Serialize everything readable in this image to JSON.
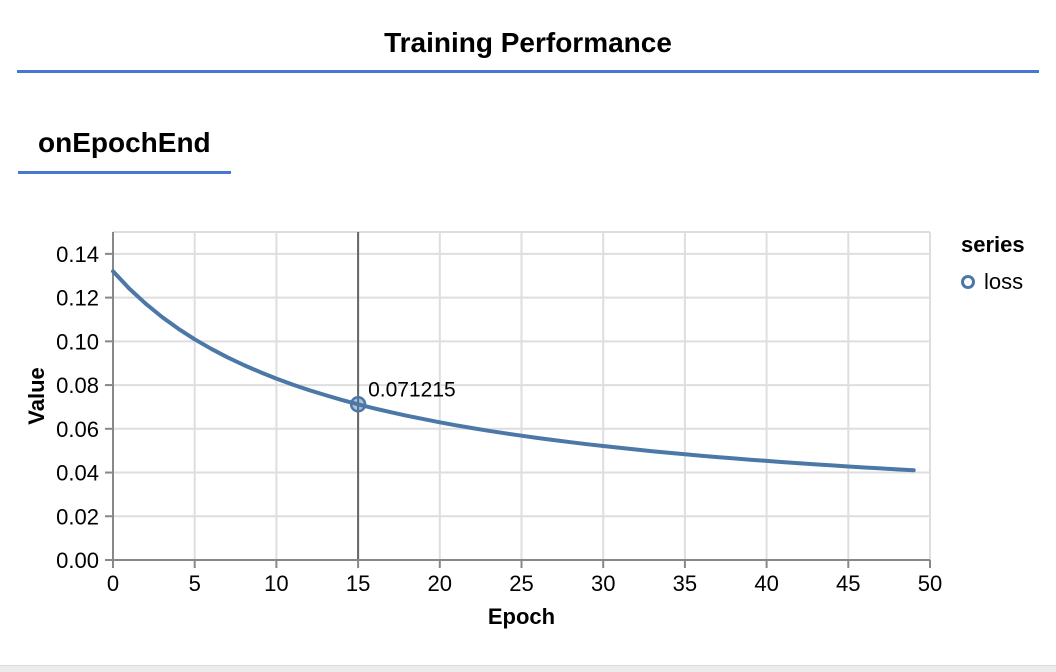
{
  "header": {
    "title": "Training Performance"
  },
  "section": {
    "label": "onEpochEnd"
  },
  "legend": {
    "title": "series",
    "items": [
      {
        "label": "loss",
        "marker": "circle-outline-icon",
        "color": "#4c78a8"
      }
    ]
  },
  "colors": {
    "accent_rule": "#4678d2",
    "series": "#4c78a8",
    "marker_fill": "rgba(76,120,168,0.45)",
    "grid": "#dedede",
    "axis": "#888888",
    "hover_rule": "#666666",
    "text": "#000000",
    "footer_strip": "#ececec"
  },
  "chart_data": {
    "type": "line",
    "title": "Training Performance",
    "xlabel": "Epoch",
    "ylabel": "Value",
    "xlim": [
      0,
      50
    ],
    "ylim": [
      0,
      0.15
    ],
    "x_ticks": [
      0,
      5,
      10,
      15,
      20,
      25,
      30,
      35,
      40,
      45,
      50
    ],
    "y_ticks": [
      0,
      0.02,
      0.04,
      0.06,
      0.08,
      0.1,
      0.12,
      0.14
    ],
    "y_tick_labels": [
      "0.00",
      "0.02",
      "0.04",
      "0.06",
      "0.08",
      "0.10",
      "0.12",
      "0.14"
    ],
    "grid": true,
    "legend_position": "right",
    "series": [
      {
        "name": "loss",
        "x": [
          0,
          1,
          2,
          3,
          4,
          5,
          6,
          7,
          8,
          9,
          10,
          11,
          12,
          13,
          14,
          15,
          16,
          17,
          18,
          19,
          20,
          21,
          22,
          23,
          24,
          25,
          26,
          27,
          28,
          29,
          30,
          31,
          32,
          33,
          34,
          35,
          36,
          37,
          38,
          39,
          40,
          41,
          42,
          43,
          44,
          45,
          46,
          47,
          48,
          49
        ],
        "values": [
          0.132009,
          0.124112,
          0.11721,
          0.111137,
          0.10575,
          0.10094,
          0.096612,
          0.092707,
          0.089162,
          0.085926,
          0.082953,
          0.080227,
          0.077713,
          0.075389,
          0.073234,
          0.071215,
          0.069351,
          0.067598,
          0.065955,
          0.064415,
          0.062967,
          0.061604,
          0.060313,
          0.059092,
          0.057936,
          0.05684,
          0.0558,
          0.054812,
          0.053872,
          0.052977,
          0.052121,
          0.051302,
          0.050518,
          0.049767,
          0.049046,
          0.048362,
          0.0477,
          0.047065,
          0.046455,
          0.04587,
          0.045304,
          0.04476,
          0.044236,
          0.04373,
          0.04324,
          0.042768,
          0.042312,
          0.04187,
          0.041443,
          0.041028
        ]
      }
    ],
    "highlight": {
      "series": "loss",
      "x": 15,
      "y": 0.071215,
      "label": "0.071215"
    }
  }
}
